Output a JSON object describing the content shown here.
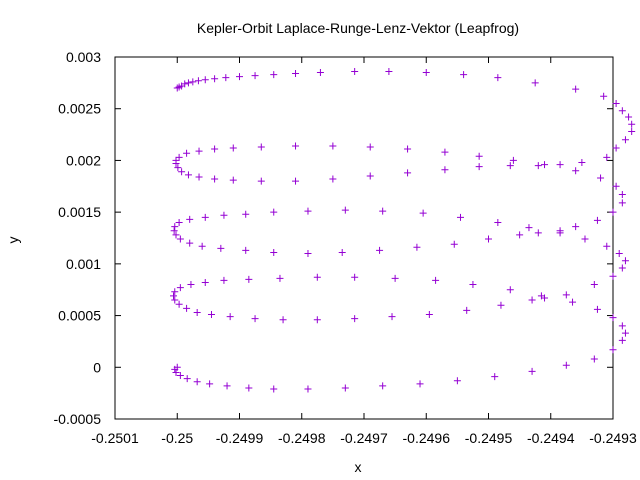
{
  "chart_data": {
    "type": "scatter",
    "title": "Kepler-Orbit Laplace-Runge-Lenz-Vektor (Leapfrog)",
    "xlabel": "x",
    "ylabel": "y",
    "xlim": [
      -0.2501,
      -0.2493
    ],
    "ylim": [
      -0.0005,
      0.003
    ],
    "xticks": [
      -0.2501,
      -0.25,
      -0.2499,
      -0.2498,
      -0.2497,
      -0.2496,
      -0.2495,
      -0.2494,
      -0.2493
    ],
    "yticks": [
      -0.0005,
      0,
      0.0005,
      0.001,
      0.0015,
      0.002,
      0.0025,
      0.003
    ],
    "xtick_labels": [
      "-0.2501",
      "-0.25",
      "-0.2499",
      "-0.2498",
      "-0.2497",
      "-0.2496",
      "-0.2495",
      "-0.2494",
      "-0.2493"
    ],
    "ytick_labels": [
      "-0.0005",
      "0",
      "0.0005",
      "0.001",
      "0.0015",
      "0.002",
      "0.0025",
      "0.003"
    ],
    "grid": false,
    "marker": "+",
    "color": "#9400d3",
    "series": [
      {
        "points": [
          [
            -0.25,
            0.0027
          ],
          [
            -0.249997,
            0.00271
          ],
          [
            -0.249993,
            0.00272
          ],
          [
            -0.249988,
            0.00274
          ],
          [
            -0.249982,
            0.00275
          ],
          [
            -0.249975,
            0.00276
          ],
          [
            -0.249966,
            0.00277
          ],
          [
            -0.249955,
            0.00278
          ],
          [
            -0.24994,
            0.00279
          ],
          [
            -0.249922,
            0.0028
          ],
          [
            -0.2499,
            0.00281
          ],
          [
            -0.249875,
            0.00282
          ],
          [
            -0.249845,
            0.00283
          ],
          [
            -0.24981,
            0.00284
          ],
          [
            -0.24977,
            0.00285
          ],
          [
            -0.249715,
            0.00286
          ],
          [
            -0.24966,
            0.00286
          ],
          [
            -0.2496,
            0.00285
          ],
          [
            -0.24954,
            0.00283
          ],
          [
            -0.249485,
            0.0028
          ],
          [
            -0.249425,
            0.00275
          ],
          [
            -0.24936,
            0.00269
          ],
          [
            -0.249315,
            0.00262
          ],
          [
            -0.249295,
            0.00255
          ],
          [
            -0.249285,
            0.00248
          ],
          [
            -0.249275,
            0.00242
          ],
          [
            -0.24927,
            0.00235
          ],
          [
            -0.24927,
            0.00228
          ],
          [
            -0.24928,
            0.0022
          ],
          [
            -0.249295,
            0.00212
          ],
          [
            -0.24931,
            0.00203
          ],
          [
            -0.24935,
            0.00198
          ],
          [
            -0.249385,
            0.00196
          ],
          [
            -0.24942,
            0.00195
          ],
          [
            -0.249465,
            0.00195
          ],
          [
            -0.249515,
            0.00194
          ],
          [
            -0.24957,
            0.00191
          ],
          [
            -0.24963,
            0.00188
          ],
          [
            -0.24969,
            0.00185
          ],
          [
            -0.24975,
            0.00182
          ],
          [
            -0.24981,
            0.0018
          ],
          [
            -0.249865,
            0.0018
          ],
          [
            -0.24991,
            0.00181
          ],
          [
            -0.24994,
            0.00182
          ],
          [
            -0.249965,
            0.00184
          ],
          [
            -0.249982,
            0.00186
          ],
          [
            -0.249993,
            0.00189
          ],
          [
            -0.249999,
            0.00193
          ],
          [
            -0.250002,
            0.00197
          ]
        ]
      },
      {
        "points": [
          [
            -0.250002,
            0.002
          ],
          [
            -0.249997,
            0.00203
          ],
          [
            -0.249985,
            0.00207
          ],
          [
            -0.249965,
            0.00209
          ],
          [
            -0.24994,
            0.00211
          ],
          [
            -0.24991,
            0.00212
          ],
          [
            -0.249865,
            0.00213
          ],
          [
            -0.24981,
            0.00214
          ],
          [
            -0.24975,
            0.00214
          ],
          [
            -0.24969,
            0.00213
          ],
          [
            -0.24963,
            0.00211
          ],
          [
            -0.24957,
            0.00208
          ],
          [
            -0.249515,
            0.00204
          ],
          [
            -0.24946,
            0.002
          ],
          [
            -0.24941,
            0.00196
          ],
          [
            -0.24936,
            0.0019
          ],
          [
            -0.24932,
            0.00183
          ],
          [
            -0.249295,
            0.00175
          ],
          [
            -0.249285,
            0.00167
          ],
          [
            -0.249285,
            0.00159
          ],
          [
            -0.2493,
            0.0015
          ],
          [
            -0.249325,
            0.00142
          ],
          [
            -0.24936,
            0.00136
          ],
          [
            -0.249385,
            0.00132
          ],
          [
            -0.24942,
            0.0013
          ],
          [
            -0.24945,
            0.00128
          ],
          [
            -0.2495,
            0.00124
          ],
          [
            -0.249555,
            0.00119
          ],
          [
            -0.249615,
            0.00116
          ],
          [
            -0.249675,
            0.00113
          ],
          [
            -0.249735,
            0.00111
          ],
          [
            -0.24979,
            0.0011
          ],
          [
            -0.249845,
            0.00111
          ],
          [
            -0.24989,
            0.00113
          ],
          [
            -0.24993,
            0.00115
          ],
          [
            -0.24996,
            0.00117
          ],
          [
            -0.24998,
            0.0012
          ],
          [
            -0.249995,
            0.00124
          ],
          [
            -0.250002,
            0.00128
          ],
          [
            -0.250005,
            0.00132
          ]
        ]
      },
      {
        "points": [
          [
            -0.250004,
            0.00136
          ],
          [
            -0.249997,
            0.0014
          ],
          [
            -0.24998,
            0.00143
          ],
          [
            -0.249955,
            0.00145
          ],
          [
            -0.249925,
            0.00147
          ],
          [
            -0.24989,
            0.00148
          ],
          [
            -0.249845,
            0.0015
          ],
          [
            -0.24979,
            0.00151
          ],
          [
            -0.24973,
            0.00152
          ],
          [
            -0.24967,
            0.00151
          ],
          [
            -0.249605,
            0.00149
          ],
          [
            -0.249545,
            0.00145
          ],
          [
            -0.249485,
            0.0014
          ],
          [
            -0.249435,
            0.00135
          ],
          [
            -0.249385,
            0.0013
          ],
          [
            -0.249345,
            0.00124
          ],
          [
            -0.24931,
            0.00117
          ],
          [
            -0.24929,
            0.0011
          ],
          [
            -0.24928,
            0.00103
          ],
          [
            -0.249285,
            0.00096
          ],
          [
            -0.2493,
            0.00088
          ],
          [
            -0.24933,
            0.0008
          ],
          [
            -0.249375,
            0.0007
          ],
          [
            -0.24941,
            0.00067
          ],
          [
            -0.24943,
            0.00065
          ],
          [
            -0.24948,
            0.0006
          ],
          [
            -0.249535,
            0.00055
          ],
          [
            -0.249595,
            0.00051
          ],
          [
            -0.249655,
            0.00049
          ],
          [
            -0.249715,
            0.00047
          ],
          [
            -0.249775,
            0.00046
          ],
          [
            -0.24983,
            0.00046
          ],
          [
            -0.249875,
            0.00047
          ],
          [
            -0.249915,
            0.00049
          ],
          [
            -0.249945,
            0.00051
          ],
          [
            -0.249968,
            0.00053
          ],
          [
            -0.249985,
            0.00057
          ],
          [
            -0.249997,
            0.00061
          ],
          [
            -0.250004,
            0.00065
          ],
          [
            -0.250006,
            0.00069
          ]
        ]
      },
      {
        "points": [
          [
            -0.250004,
            0.00073
          ],
          [
            -0.249995,
            0.00077
          ],
          [
            -0.249978,
            0.0008
          ],
          [
            -0.249955,
            0.00082
          ],
          [
            -0.249925,
            0.00084
          ],
          [
            -0.249885,
            0.00085
          ],
          [
            -0.249835,
            0.00086
          ],
          [
            -0.249775,
            0.00087
          ],
          [
            -0.249715,
            0.00087
          ],
          [
            -0.24965,
            0.00086
          ],
          [
            -0.249585,
            0.00084
          ],
          [
            -0.249525,
            0.0008
          ],
          [
            -0.249465,
            0.00075
          ],
          [
            -0.249415,
            0.00069
          ],
          [
            -0.249365,
            0.00063
          ],
          [
            -0.249325,
            0.00056
          ],
          [
            -0.2493,
            0.00048
          ],
          [
            -0.249285,
            0.0004
          ],
          [
            -0.24928,
            0.00033
          ],
          [
            -0.249285,
            0.00026
          ],
          [
            -0.2493,
            0.00017
          ],
          [
            -0.24933,
            8e-05
          ],
          [
            -0.249375,
            2e-05
          ],
          [
            -0.24943,
            -4e-05
          ],
          [
            -0.24949,
            -9e-05
          ],
          [
            -0.24955,
            -0.00013
          ],
          [
            -0.24961,
            -0.00016
          ],
          [
            -0.24967,
            -0.00018
          ],
          [
            -0.24973,
            -0.0002
          ],
          [
            -0.24979,
            -0.00021
          ],
          [
            -0.249845,
            -0.00021
          ],
          [
            -0.249885,
            -0.0002
          ],
          [
            -0.24992,
            -0.00018
          ],
          [
            -0.249948,
            -0.00016
          ],
          [
            -0.249968,
            -0.00014
          ],
          [
            -0.249984,
            -0.00011
          ],
          [
            -0.249995,
            -8e-05
          ],
          [
            -0.250002,
            -5e-05
          ],
          [
            -0.250004,
            -2e-05
          ],
          [
            -0.25,
            0.0
          ]
        ]
      }
    ]
  }
}
